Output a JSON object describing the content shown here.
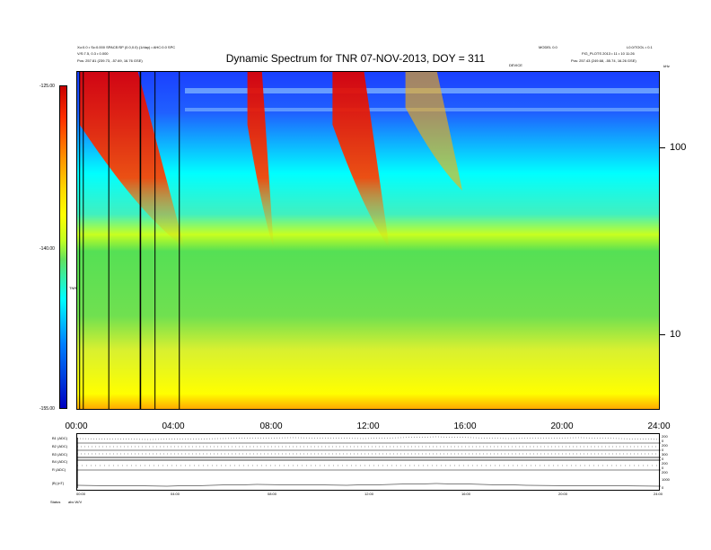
{
  "header": {
    "left_line1": "Xu:0.0 • Sc:0.000 SPACE/SP (0.0,0.0) (1/day) • AHC:0.0 SPC",
    "left_line2": "V/S:7.5, 0.3 • 0.000",
    "left_line3": "Pos: 257.81 (239.73, -57.69, 16.76 GSE)",
    "right_line1a": "MODEL 0.0",
    "right_line1b": "L0.0/TOOL • 0.1",
    "right_line2": "FIG_PLOTS 2013 • 11 • 10 11:26",
    "right_line3": "Pos: 257.43 (249.68, -55.74, 16.26 GSE)",
    "mid_label": "DEVICE",
    "corner_right": "kHz"
  },
  "chart_data": {
    "type": "heatmap",
    "title": "Dynamic Spectrum for TNR 07-NOV-2013, DOY = 311",
    "xlabel": "",
    "ylabel": "",
    "x_ticks": [
      "00:00",
      "04:00",
      "08:00",
      "12:00",
      "16:00",
      "20:00",
      "24:00"
    ],
    "x_range_hours": [
      0,
      24
    ],
    "y_ticks": [
      "100",
      "10"
    ],
    "y_scale": "log",
    "colorbar": {
      "ticks": [
        "-125.00",
        "-140.00",
        "-155.00"
      ],
      "label": "TNR",
      "range": [
        -155,
        -125
      ]
    },
    "vertical_lines_hours": [
      0.1,
      0.25,
      1.3,
      2.6,
      3.2,
      4.2
    ],
    "bright_features": [
      {
        "start_h": 0.1,
        "end_h": 2.5,
        "peak": "red"
      },
      {
        "start_h": 7.0,
        "end_h": 7.6,
        "peak": "red"
      },
      {
        "start_h": 10.5,
        "end_h": 11.8,
        "peak": "red"
      },
      {
        "start_h": 13.5,
        "end_h": 14.8,
        "peak": "orange"
      }
    ]
  },
  "bottom_panel": {
    "labels": [
      "B1 (ADC)",
      "B2 (ADC)",
      "B3 (ADC)",
      "B4 (ADC)",
      "R (ADC)",
      "|B| (nT)"
    ],
    "right_values": [
      "200",
      "0",
      "200",
      "0",
      "300",
      "0",
      "200",
      "0",
      "200",
      "1000",
      "0"
    ],
    "x_ticks": [
      "00:00",
      "04:00",
      "08:00",
      "12:00",
      "16:00",
      "20:00",
      "24:00"
    ],
    "footer_left": "Status",
    "footer_mid": "abc  W/V"
  },
  "colors": {
    "red": "#e00000",
    "yellow": "#ffff00",
    "green": "#55e055",
    "cyan": "#00ffff",
    "blue": "#1a40ff"
  }
}
